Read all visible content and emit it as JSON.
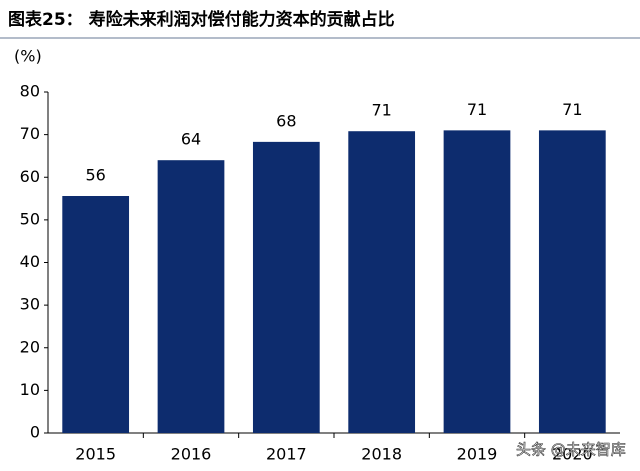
{
  "chart_data": {
    "type": "bar",
    "title": "图表25：  寿险未来利润对偿付能力资本的贡献占比",
    "y_label": "(%)",
    "categories": [
      "2015",
      "2016",
      "2017",
      "2018",
      "2019",
      "2020"
    ],
    "values": [
      55.6,
      64.0,
      68.3,
      70.8,
      71.0,
      71.0
    ],
    "value_labels": [
      "56",
      "64",
      "68",
      "71",
      "71",
      "71"
    ],
    "color": "#0d2c6e",
    "ylim": [
      0,
      80
    ],
    "yticks": [
      0,
      10,
      20,
      30,
      40,
      50,
      60,
      70,
      80
    ],
    "grid": false,
    "watermark": "头条 @未来智库"
  }
}
